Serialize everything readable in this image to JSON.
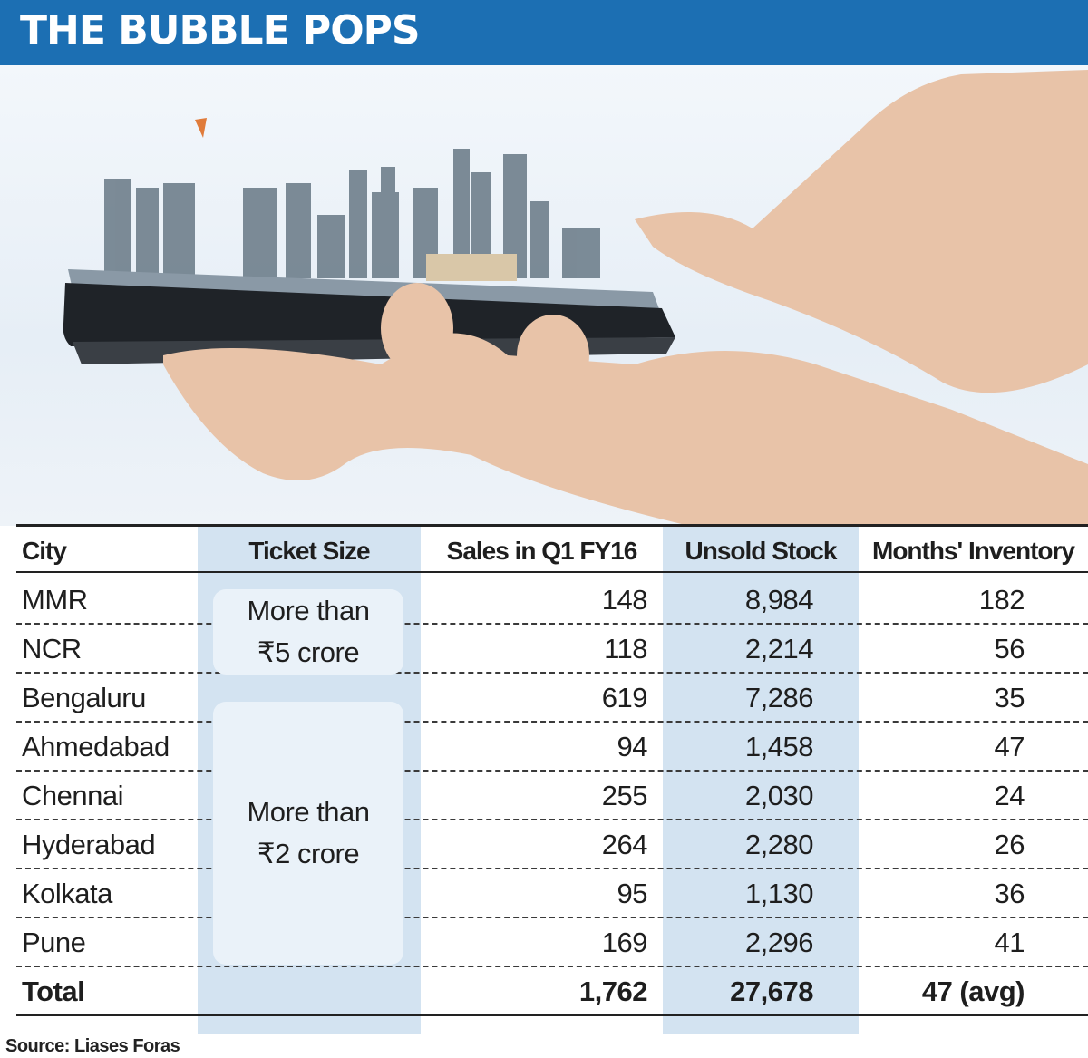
{
  "title": "THE BUBBLE POPS",
  "source": "Source: Liases Foras",
  "chart_data": {
    "type": "table",
    "columns": [
      "City",
      "Ticket Size",
      "Sales in Q1 FY16",
      "Unsold Stock",
      "Months' Inventory"
    ],
    "ticket_groups": [
      {
        "label_lines": [
          "More than",
          "₹5 crore"
        ],
        "cities": [
          "MMR",
          "NCR"
        ]
      },
      {
        "label_lines": [
          "More than",
          "₹2 crore"
        ],
        "cities": [
          "Bengaluru",
          "Ahmedabad",
          "Chennai",
          "Hyderabad",
          "Kolkata",
          "Pune"
        ]
      }
    ],
    "rows": [
      {
        "city": "MMR",
        "sales": "148",
        "stock": "8,984",
        "months": "182"
      },
      {
        "city": "NCR",
        "sales": "118",
        "stock": "2,214",
        "months": "56"
      },
      {
        "city": "Bengaluru",
        "sales": "619",
        "stock": "7,286",
        "months": "35"
      },
      {
        "city": "Ahmedabad",
        "sales": "94",
        "stock": "1,458",
        "months": "47"
      },
      {
        "city": "Chennai",
        "sales": "255",
        "stock": "2,030",
        "months": "24"
      },
      {
        "city": "Hyderabad",
        "sales": "264",
        "stock": "2,280",
        "months": "26"
      },
      {
        "city": "Kolkata",
        "sales": "95",
        "stock": "1,130",
        "months": "36"
      },
      {
        "city": "Pune",
        "sales": "169",
        "stock": "2,296",
        "months": "41"
      }
    ],
    "total": {
      "city": "Total",
      "sales": "1,762",
      "stock": "27,678",
      "months": "47 (avg)"
    }
  }
}
